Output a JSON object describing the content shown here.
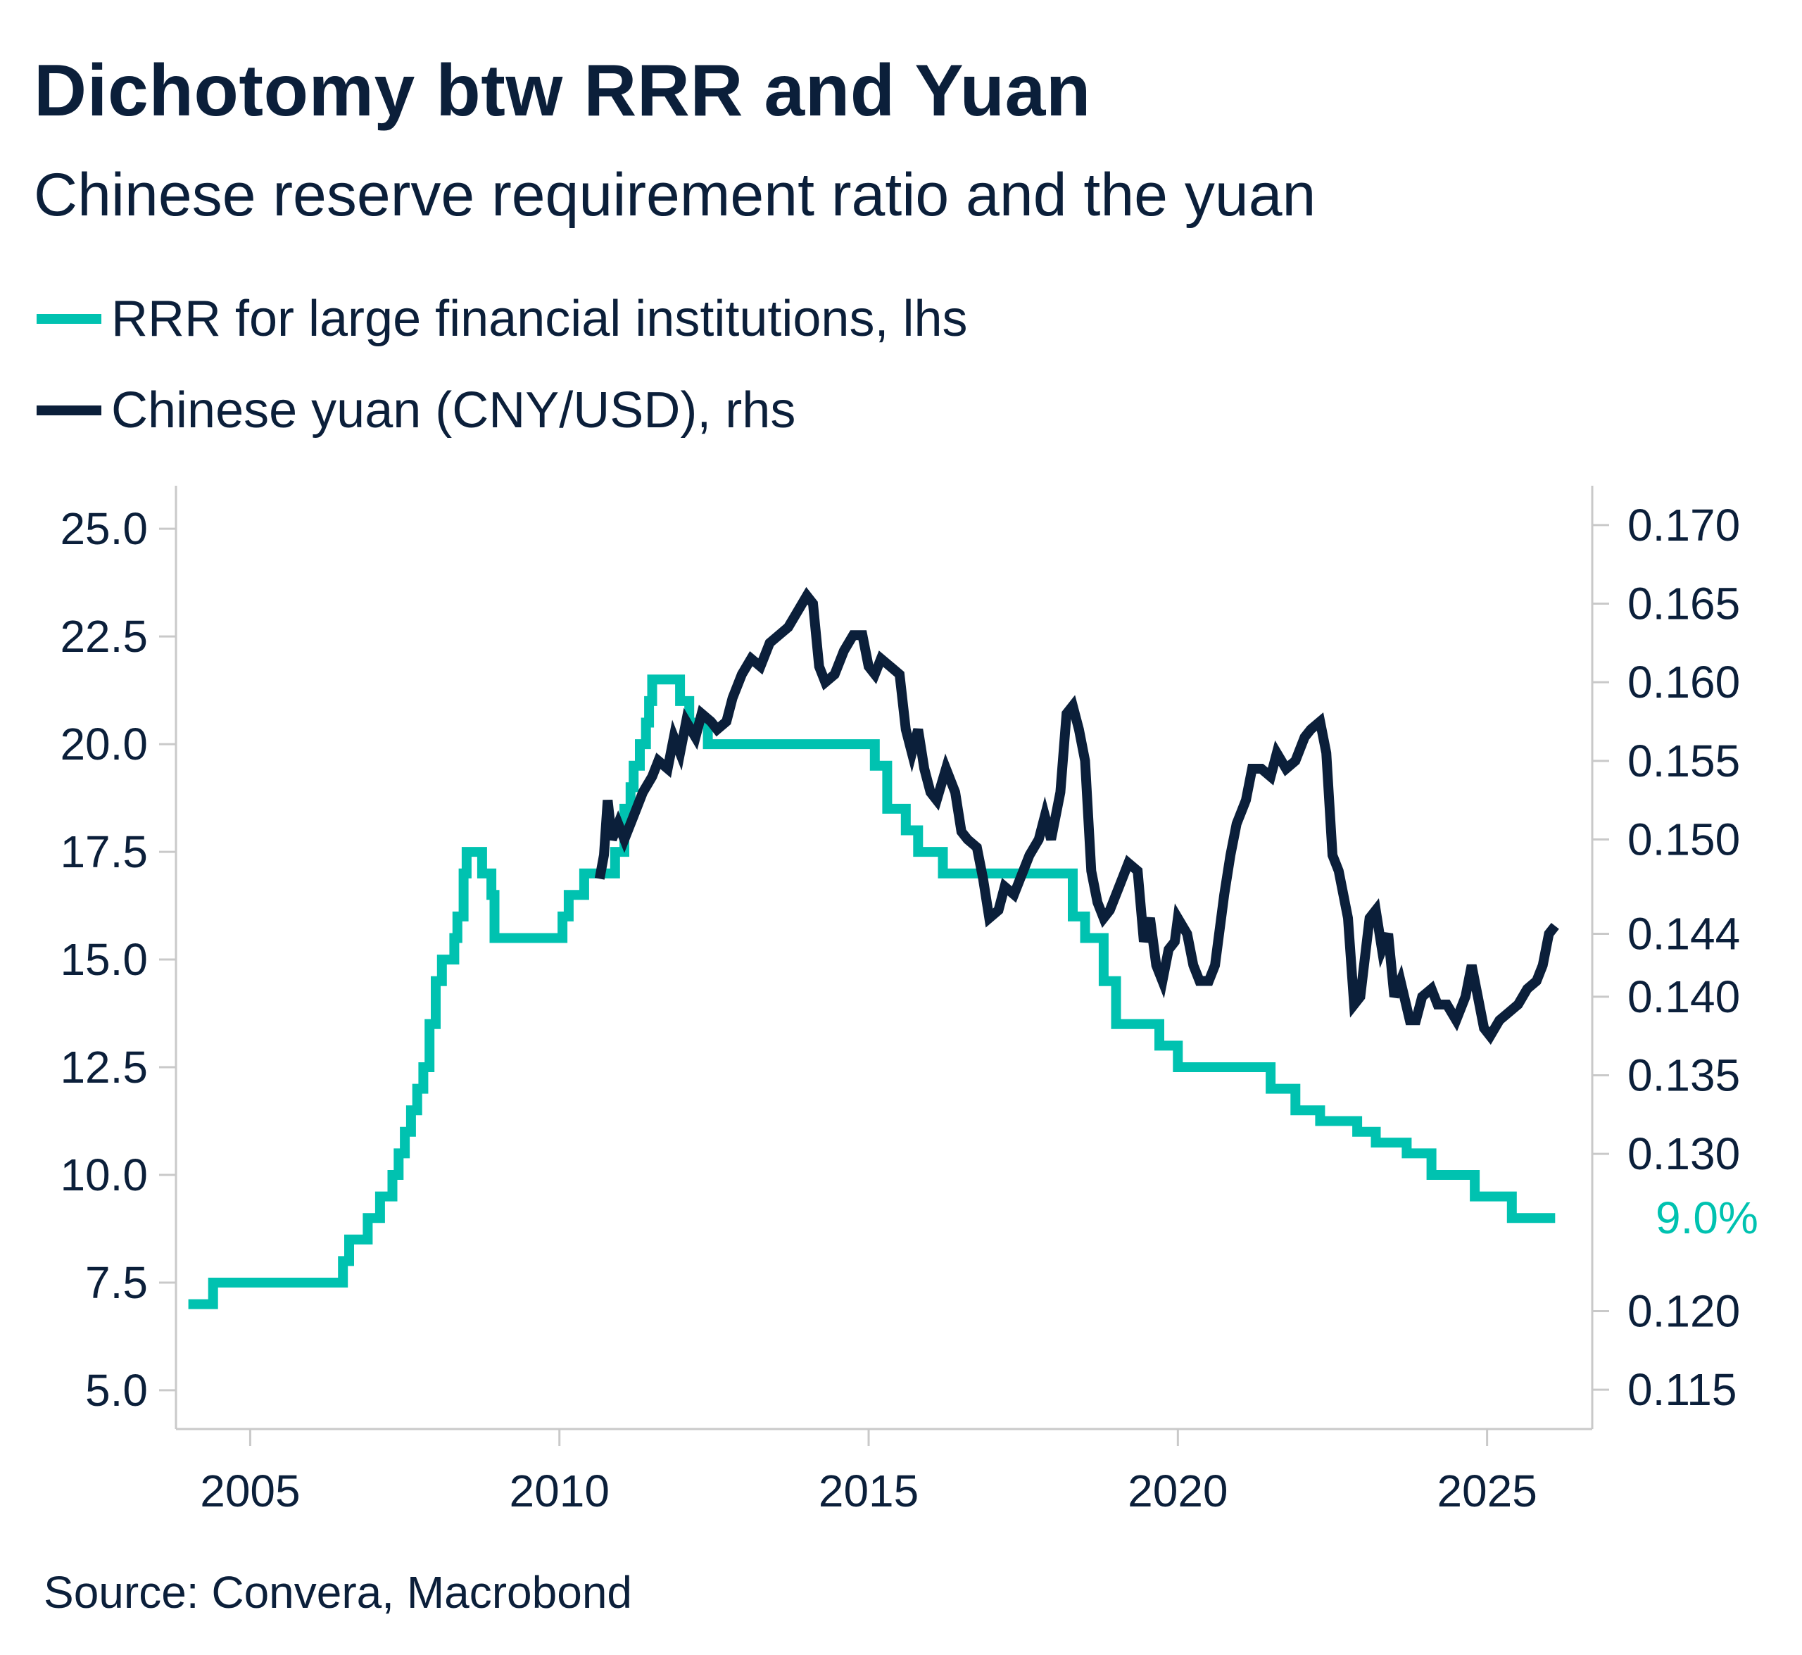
{
  "title": "Dichotomy btw RRR and Yuan",
  "subtitle": "Chinese reserve requirement ratio and the yuan",
  "source": "Source: Convera, Macrobond",
  "colors": {
    "rrr": "#00c2b0",
    "yuan": "#0b1f3a",
    "axis": "#c9c9c9",
    "text": "#0b1f3a"
  },
  "chart_data": {
    "type": "line",
    "title": "Dichotomy btw RRR and Yuan",
    "subtitle": "Chinese reserve requirement ratio and the yuan",
    "legend_position": "top-left",
    "grid": false,
    "x_ticks": [
      "2005",
      "2010",
      "2015",
      "2020",
      "2025"
    ],
    "xlim": [
      2003.8,
      2026.7
    ],
    "y_left": {
      "ticks": [
        "5.0",
        "7.5",
        "10.0",
        "12.5",
        "15.0",
        "17.5",
        "20.0",
        "22.5",
        "25.0"
      ],
      "ylim": [
        4.1,
        26.0
      ]
    },
    "y_right": {
      "ticks": [
        "0.115",
        "0.120",
        "0.130",
        "0.135",
        "0.140",
        "0.144",
        "0.150",
        "0.155",
        "0.160",
        "0.165",
        "0.170"
      ],
      "ylim": [
        0.1125,
        0.1725
      ]
    },
    "end_label": "9.0%",
    "series": [
      {
        "name": "RRR for large financial institutions, lhs",
        "axis": "left",
        "step": true,
        "points": [
          [
            2004.0,
            7.0
          ],
          [
            2004.4,
            7.5
          ],
          [
            2006.5,
            8.0
          ],
          [
            2006.6,
            8.5
          ],
          [
            2006.9,
            9.0
          ],
          [
            2007.1,
            9.5
          ],
          [
            2007.3,
            10.0
          ],
          [
            2007.4,
            10.5
          ],
          [
            2007.5,
            11.0
          ],
          [
            2007.6,
            11.5
          ],
          [
            2007.7,
            12.0
          ],
          [
            2007.8,
            12.5
          ],
          [
            2007.9,
            13.5
          ],
          [
            2008.0,
            14.5
          ],
          [
            2008.1,
            15.0
          ],
          [
            2008.3,
            15.5
          ],
          [
            2008.35,
            16.0
          ],
          [
            2008.45,
            17.0
          ],
          [
            2008.5,
            17.5
          ],
          [
            2008.75,
            17.0
          ],
          [
            2008.9,
            16.5
          ],
          [
            2008.95,
            15.5
          ],
          [
            2010.05,
            16.0
          ],
          [
            2010.15,
            16.5
          ],
          [
            2010.4,
            17.0
          ],
          [
            2010.9,
            17.5
          ],
          [
            2011.05,
            18.5
          ],
          [
            2011.15,
            19.0
          ],
          [
            2011.2,
            19.5
          ],
          [
            2011.3,
            20.0
          ],
          [
            2011.4,
            20.5
          ],
          [
            2011.45,
            21.0
          ],
          [
            2011.5,
            21.5
          ],
          [
            2011.95,
            21.0
          ],
          [
            2012.1,
            20.5
          ],
          [
            2012.4,
            20.0
          ],
          [
            2015.1,
            19.5
          ],
          [
            2015.3,
            18.5
          ],
          [
            2015.6,
            18.0
          ],
          [
            2015.8,
            17.5
          ],
          [
            2016.2,
            17.0
          ],
          [
            2018.3,
            16.0
          ],
          [
            2018.5,
            15.5
          ],
          [
            2018.8,
            14.5
          ],
          [
            2019.0,
            13.5
          ],
          [
            2019.7,
            13.0
          ],
          [
            2020.0,
            12.5
          ],
          [
            2021.5,
            12.0
          ],
          [
            2021.9,
            11.5
          ],
          [
            2022.3,
            11.25
          ],
          [
            2022.9,
            11.0
          ],
          [
            2023.2,
            10.75
          ],
          [
            2023.7,
            10.5
          ],
          [
            2024.1,
            10.0
          ],
          [
            2024.8,
            9.5
          ],
          [
            2025.4,
            9.0
          ],
          [
            2026.1,
            9.0
          ]
        ]
      },
      {
        "name": "Chinese yuan (CNY/USD), rhs",
        "axis": "right",
        "step": false,
        "points": [
          [
            2010.65,
            0.1475
          ],
          [
            2010.72,
            0.149
          ],
          [
            2010.78,
            0.1525
          ],
          [
            2010.85,
            0.15
          ],
          [
            2010.95,
            0.151
          ],
          [
            2011.05,
            0.15
          ],
          [
            2011.2,
            0.1515
          ],
          [
            2011.35,
            0.153
          ],
          [
            2011.5,
            0.154
          ],
          [
            2011.6,
            0.155
          ],
          [
            2011.75,
            0.1545
          ],
          [
            2011.85,
            0.1565
          ],
          [
            2011.95,
            0.1555
          ],
          [
            2012.05,
            0.1575
          ],
          [
            2012.2,
            0.1565
          ],
          [
            2012.3,
            0.158
          ],
          [
            2012.45,
            0.1575
          ],
          [
            2012.55,
            0.157
          ],
          [
            2012.7,
            0.1575
          ],
          [
            2012.8,
            0.159
          ],
          [
            2012.95,
            0.1605
          ],
          [
            2013.1,
            0.1615
          ],
          [
            2013.25,
            0.161
          ],
          [
            2013.4,
            0.1625
          ],
          [
            2013.55,
            0.163
          ],
          [
            2013.7,
            0.1635
          ],
          [
            2013.85,
            0.1645
          ],
          [
            2014.0,
            0.1655
          ],
          [
            2014.1,
            0.165
          ],
          [
            2014.2,
            0.161
          ],
          [
            2014.3,
            0.16
          ],
          [
            2014.45,
            0.1605
          ],
          [
            2014.6,
            0.162
          ],
          [
            2014.75,
            0.163
          ],
          [
            2014.9,
            0.163
          ],
          [
            2015.0,
            0.161
          ],
          [
            2015.1,
            0.1605
          ],
          [
            2015.2,
            0.1615
          ],
          [
            2015.35,
            0.161
          ],
          [
            2015.5,
            0.1605
          ],
          [
            2015.6,
            0.157
          ],
          [
            2015.7,
            0.1555
          ],
          [
            2015.8,
            0.157
          ],
          [
            2015.9,
            0.1545
          ],
          [
            2016.0,
            0.153
          ],
          [
            2016.1,
            0.1525
          ],
          [
            2016.25,
            0.1545
          ],
          [
            2016.4,
            0.153
          ],
          [
            2016.5,
            0.1505
          ],
          [
            2016.6,
            0.15
          ],
          [
            2016.75,
            0.1495
          ],
          [
            2016.85,
            0.1475
          ],
          [
            2016.95,
            0.145
          ],
          [
            2017.1,
            0.1455
          ],
          [
            2017.2,
            0.147
          ],
          [
            2017.35,
            0.1465
          ],
          [
            2017.5,
            0.148
          ],
          [
            2017.6,
            0.149
          ],
          [
            2017.75,
            0.15
          ],
          [
            2017.85,
            0.1515
          ],
          [
            2017.95,
            0.15
          ],
          [
            2018.1,
            0.153
          ],
          [
            2018.2,
            0.158
          ],
          [
            2018.3,
            0.1585
          ],
          [
            2018.4,
            0.157
          ],
          [
            2018.5,
            0.155
          ],
          [
            2018.6,
            0.148
          ],
          [
            2018.7,
            0.146
          ],
          [
            2018.8,
            0.145
          ],
          [
            2018.9,
            0.1455
          ],
          [
            2019.05,
            0.147
          ],
          [
            2019.2,
            0.1485
          ],
          [
            2019.35,
            0.148
          ],
          [
            2019.45,
            0.1435
          ],
          [
            2019.55,
            0.145
          ],
          [
            2019.65,
            0.142
          ],
          [
            2019.75,
            0.141
          ],
          [
            2019.85,
            0.143
          ],
          [
            2019.95,
            0.1435
          ],
          [
            2020.0,
            0.145
          ],
          [
            2020.15,
            0.144
          ],
          [
            2020.25,
            0.142
          ],
          [
            2020.35,
            0.141
          ],
          [
            2020.5,
            0.141
          ],
          [
            2020.6,
            0.142
          ],
          [
            2020.75,
            0.1465
          ],
          [
            2020.85,
            0.149
          ],
          [
            2020.95,
            0.151
          ],
          [
            2021.1,
            0.1525
          ],
          [
            2021.2,
            0.1545
          ],
          [
            2021.35,
            0.1545
          ],
          [
            2021.5,
            0.154
          ],
          [
            2021.6,
            0.1555
          ],
          [
            2021.75,
            0.1545
          ],
          [
            2021.9,
            0.155
          ],
          [
            2022.05,
            0.1565
          ],
          [
            2022.15,
            0.157
          ],
          [
            2022.3,
            0.1575
          ],
          [
            2022.4,
            0.1555
          ],
          [
            2022.5,
            0.149
          ],
          [
            2022.6,
            0.148
          ],
          [
            2022.75,
            0.145
          ],
          [
            2022.85,
            0.1395
          ],
          [
            2022.95,
            0.14
          ],
          [
            2023.1,
            0.145
          ],
          [
            2023.2,
            0.1455
          ],
          [
            2023.3,
            0.143
          ],
          [
            2023.4,
            0.144
          ],
          [
            2023.5,
            0.14
          ],
          [
            2023.6,
            0.141
          ],
          [
            2023.75,
            0.1385
          ],
          [
            2023.85,
            0.1385
          ],
          [
            2023.95,
            0.14
          ],
          [
            2024.1,
            0.1405
          ],
          [
            2024.2,
            0.1395
          ],
          [
            2024.35,
            0.1395
          ],
          [
            2024.5,
            0.1385
          ],
          [
            2024.65,
            0.14
          ],
          [
            2024.75,
            0.142
          ],
          [
            2024.85,
            0.14
          ],
          [
            2024.95,
            0.138
          ],
          [
            2025.05,
            0.1375
          ],
          [
            2025.2,
            0.1385
          ],
          [
            2025.35,
            0.139
          ],
          [
            2025.5,
            0.1395
          ],
          [
            2025.65,
            0.1405
          ],
          [
            2025.8,
            0.141
          ],
          [
            2025.9,
            0.142
          ],
          [
            2026.0,
            0.144
          ],
          [
            2026.1,
            0.1445
          ]
        ]
      }
    ]
  }
}
